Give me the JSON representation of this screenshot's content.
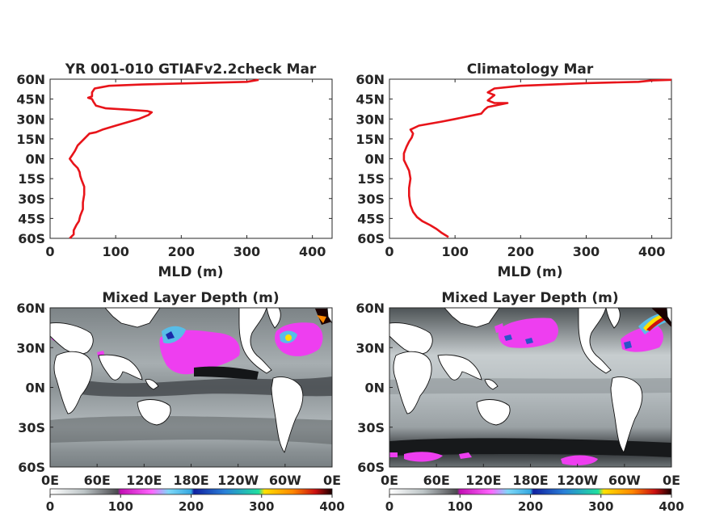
{
  "chart_data": [
    {
      "type": "line",
      "title": "YR 001-010 GTIAFv2.2check Mar",
      "xlabel": "MLD (m)",
      "ylabel": "",
      "xlim": [
        0,
        430
      ],
      "ylim": [
        -60,
        60
      ],
      "xticks": [
        "0",
        "100",
        "200",
        "300",
        "400"
      ],
      "yticks": [
        "60N",
        "45N",
        "30N",
        "15N",
        "0N",
        "15S",
        "30S",
        "45S",
        "60S"
      ],
      "color": "#e8141a",
      "series": [
        {
          "x": [
            30,
            36,
            36,
            40,
            44,
            46,
            50,
            50,
            52,
            52,
            48,
            46,
            45,
            42,
            36,
            30,
            34,
            38,
            42,
            60,
            70,
            80,
            100,
            135,
            150,
            155,
            148,
            120,
            85,
            70,
            66,
            64,
            58,
            64,
            64,
            68,
            90,
            140,
            220,
            300,
            318
          ],
          "y": [
            -60,
            -57,
            -54,
            -50,
            -47,
            -43,
            -38,
            -33,
            -27,
            -21,
            -16,
            -13,
            -10,
            -7,
            -4,
            0,
            3,
            6,
            10,
            19,
            20,
            22,
            25,
            30,
            33,
            35,
            36,
            37,
            38,
            40,
            43,
            45,
            46,
            47,
            50,
            53,
            55,
            56,
            57,
            58,
            59.5
          ]
        }
      ]
    },
    {
      "type": "line",
      "title": "Climatology Mar",
      "xlabel": "MLD (m)",
      "ylabel": "",
      "xlim": [
        0,
        430
      ],
      "ylim": [
        -60,
        60
      ],
      "xticks": [
        "0",
        "100",
        "200",
        "300",
        "400"
      ],
      "yticks": [
        "60N",
        "45N",
        "30N",
        "15N",
        "0N",
        "15S",
        "30S",
        "45S",
        "60S"
      ],
      "color": "#e8141a",
      "series": [
        {
          "x": [
            90,
            80,
            72,
            62,
            50,
            42,
            36,
            32,
            30,
            30,
            32,
            30,
            26,
            22,
            22,
            26,
            30,
            34,
            36,
            32,
            45,
            80,
            100,
            110,
            130,
            140,
            145,
            150,
            180,
            160,
            150,
            155,
            160,
            150,
            160,
            200,
            300,
            380,
            400,
            430
          ],
          "y": [
            -59,
            -56,
            -53,
            -50,
            -47,
            -44,
            -40,
            -35,
            -28,
            -22,
            -15,
            -9,
            -5,
            -1,
            4,
            9,
            13,
            16,
            19,
            22,
            25,
            28,
            30,
            31,
            33,
            34,
            37,
            39,
            42,
            42,
            44,
            46,
            48,
            50,
            53,
            55,
            57,
            58,
            59,
            59.5
          ]
        }
      ]
    },
    {
      "type": "heatmap",
      "title": "Mixed Layer Depth (m)",
      "xlabel": "",
      "ylabel": "",
      "xticks": [
        "0E",
        "60E",
        "120E",
        "180E",
        "120W",
        "60W",
        "0E"
      ],
      "yticks": [
        "60N",
        "30N",
        "0N",
        "30S",
        "60S"
      ],
      "colorbar_ticks": [
        "0",
        "100",
        "200",
        "300",
        "400"
      ],
      "colorbar_range": [
        0,
        400
      ]
    },
    {
      "type": "heatmap",
      "title": "Mixed Layer Depth (m)",
      "xlabel": "",
      "ylabel": "",
      "xticks": [
        "0E",
        "60E",
        "120E",
        "180E",
        "120W",
        "60W",
        "0E"
      ],
      "yticks": [
        "60N",
        "30N",
        "0N",
        "30S",
        "60S"
      ],
      "colorbar_ticks": [
        "0",
        "100",
        "200",
        "300",
        "400"
      ],
      "colorbar_range": [
        0,
        400
      ]
    }
  ]
}
